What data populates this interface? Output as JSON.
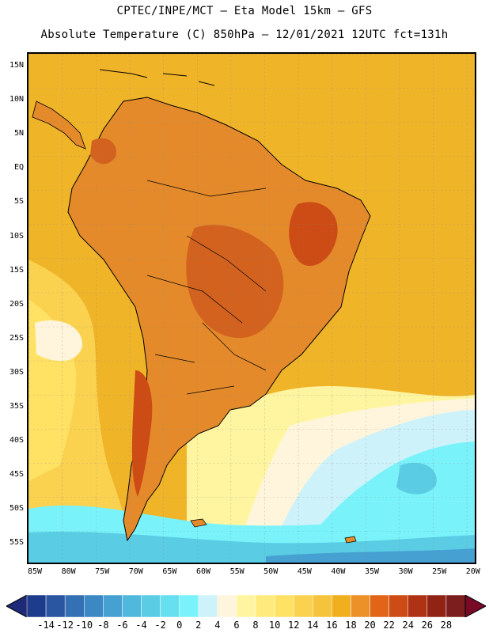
{
  "title_line1": "CPTEC/INPE/MCT –  Eta Model 15km – GFS",
  "title_line2": "Absolute Temperature (C) 850hPa – 12/01/2021 12UTC fct=131h",
  "lat_labels": [
    "15N",
    "10N",
    "5N",
    "EQ",
    "5S",
    "10S",
    "15S",
    "20S",
    "25S",
    "30S",
    "35S",
    "40S",
    "45S",
    "50S",
    "55S"
  ],
  "lon_labels": [
    "85W",
    "80W",
    "75W",
    "70W",
    "65W",
    "60W",
    "55W",
    "50W",
    "45W",
    "40W",
    "35W",
    "30W",
    "25W",
    "20W"
  ],
  "colorbar": {
    "labels": [
      "-14",
      "-12",
      "-10",
      "-8",
      "-6",
      "-4",
      "-2",
      "0",
      "2",
      "4",
      "6",
      "8",
      "10",
      "12",
      "14",
      "16",
      "18",
      "20",
      "22",
      "24",
      "26",
      "28"
    ],
    "colors": [
      "#1e3c8c",
      "#2a55a0",
      "#3470b4",
      "#3c88c4",
      "#46a0d2",
      "#50b8dc",
      "#5acde4",
      "#66dff0",
      "#7af2fa",
      "#cdf2fa",
      "#fff5dc",
      "#fff5a0",
      "#ffeb7d",
      "#ffe164",
      "#fad250",
      "#f5c33c",
      "#f0af1e",
      "#eb9128",
      "#e16419",
      "#cd4b14",
      "#af3214",
      "#912314",
      "#7d1e1e"
    ],
    "under_color": "#1e2a78",
    "over_color": "#780a28"
  },
  "map": {
    "ocean_base_color": "#f0b428",
    "land_color": "#e48a2a",
    "hot_core_color": "#d2621e",
    "cold_ocean_colors": [
      "#fff5dc",
      "#cdf2fa",
      "#7af2fa",
      "#5acde4",
      "#46a0d2"
    ]
  }
}
